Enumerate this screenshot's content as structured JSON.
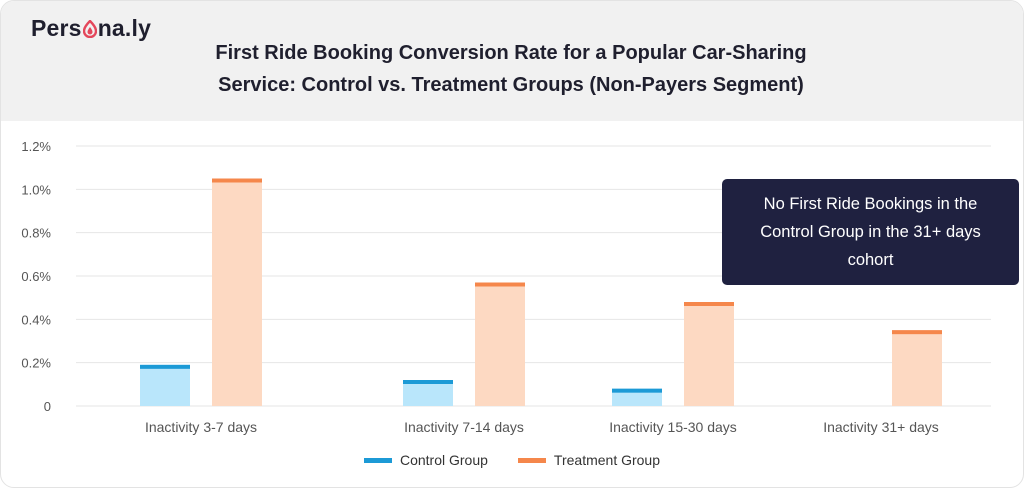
{
  "brand": {
    "logo_text_before": "Pers",
    "logo_text_after": "na.ly",
    "logo_color": "#e4475b"
  },
  "title_line1": "First Ride Booking Conversion Rate for a Popular Car-Sharing",
  "title_line2": "Service: Control vs. Treatment Groups (Non-Payers Segment)",
  "annotation": "No First Ride Bookings in the Control Group in the 31+ days cohort",
  "colors": {
    "control_fill": "#b9e6fb",
    "control_cap": "#1c9ad6",
    "treatment_fill": "#fdd9c2",
    "treatment_cap": "#f5874b",
    "grid": "#e6e6e6",
    "axis_text": "#555555"
  },
  "chart_data": {
    "type": "bar",
    "title": "First Ride Booking Conversion Rate for a Popular Car-Sharing Service: Control vs. Treatment Groups (Non-Payers Segment)",
    "categories": [
      "Inactivity 3-7 days",
      "Inactivity 7-14 days",
      "Inactivity 15-30 days",
      "Inactivity 31+ days"
    ],
    "series": [
      {
        "name": "Control Group",
        "values": [
          0.19,
          0.12,
          0.08,
          0
        ]
      },
      {
        "name": "Treatment Group",
        "values": [
          1.05,
          0.57,
          0.48,
          0.35
        ]
      }
    ],
    "yticks": [
      0,
      0.2,
      0.4,
      0.6,
      0.8,
      1.0,
      1.2
    ],
    "ytick_labels": [
      "0",
      "0.2%",
      "0.4%",
      "0.6%",
      "0.8%",
      "1.0%",
      "1.2%"
    ],
    "ylim": [
      0,
      1.2
    ],
    "grid": true,
    "legend_position": "bottom-center"
  }
}
